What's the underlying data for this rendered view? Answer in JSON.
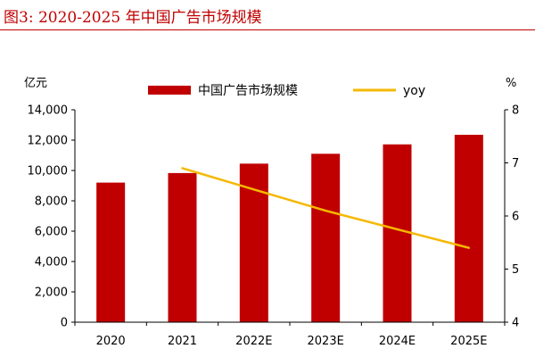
{
  "figure": {
    "label": "图3:   2020-2025 年中国广告市场规模",
    "accent_color": "#c00000"
  },
  "chart_data": {
    "type": "bar",
    "categories": [
      "2020",
      "2021",
      "2022E",
      "2023E",
      "2024E",
      "2025E"
    ],
    "series": [
      {
        "name": "中国广告市场规模",
        "type": "bar",
        "axis": "left",
        "color": "#c00000",
        "values": [
          9200,
          9830,
          10450,
          11100,
          11720,
          12350
        ]
      },
      {
        "name": "yoy",
        "type": "line",
        "axis": "right",
        "color": "#f5b800",
        "values": [
          null,
          6.9,
          6.5,
          6.1,
          5.75,
          5.4
        ]
      }
    ],
    "y_left": {
      "unit": "亿元",
      "ylim": [
        0,
        14000
      ],
      "ticks": [
        0,
        2000,
        4000,
        6000,
        8000,
        10000,
        12000,
        14000
      ],
      "tick_labels": [
        "0",
        "2,000",
        "4,000",
        "6,000",
        "8,000",
        "10,000",
        "12,000",
        "14,000"
      ]
    },
    "y_right": {
      "unit": "%",
      "ylim": [
        4,
        8
      ],
      "ticks": [
        4,
        5,
        6,
        7,
        8
      ],
      "tick_labels": [
        "4",
        "5",
        "6",
        "7",
        "8"
      ]
    },
    "grid": false,
    "legend_position": "top-center"
  }
}
